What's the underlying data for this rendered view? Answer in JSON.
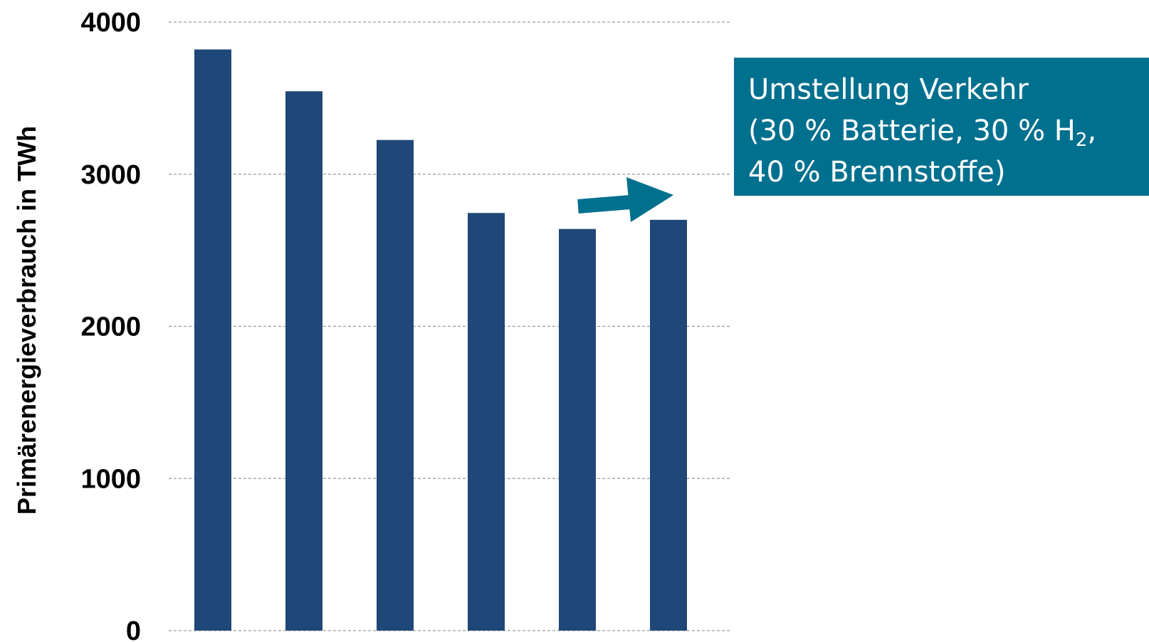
{
  "chart_data": {
    "type": "bar",
    "categories": [
      "",
      "",
      "",
      "",
      "",
      ""
    ],
    "values": [
      3820,
      3545,
      3225,
      2745,
      2640,
      2700
    ],
    "title": "",
    "xlabel": "",
    "ylabel": "Primärenergieverbrauch in TWh",
    "ylim": [
      0,
      4000
    ],
    "yticks": [
      "0",
      "1000",
      "2000",
      "3000",
      "4000"
    ],
    "ytick_values": [
      0,
      1000,
      2000,
      3000,
      4000
    ],
    "grid": true,
    "legend": "none",
    "colors": {
      "bars": "#1f4778",
      "annotation": "#00708f",
      "gridline": "#9a9a9a"
    },
    "annotation": {
      "line1": "Umstellung Verkehr",
      "line2_prefix": "(30 % Batterie, 30 % H",
      "line2_sub": "2",
      "line2_suffix": ",",
      "line3": "40 % Brennstoffe)",
      "arrow_icon": "arrow-right-icon"
    }
  }
}
